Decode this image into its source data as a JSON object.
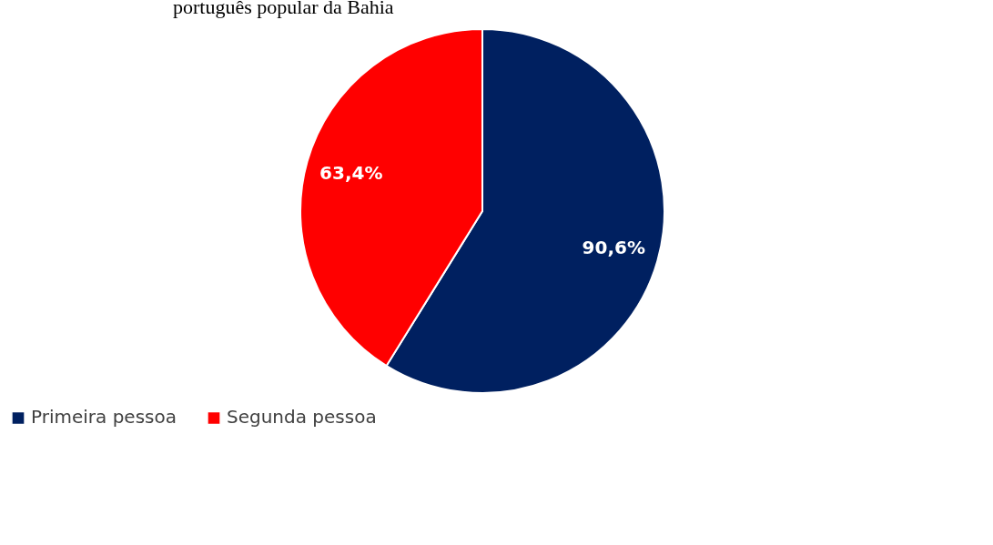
{
  "chart_data": {
    "type": "pie",
    "title": "português popular da Bahia",
    "categories": [
      "Primeira pessoa",
      "Segunda pessoa"
    ],
    "values": [
      90.6,
      63.4
    ],
    "value_labels": [
      "90,6%",
      "63,4%"
    ],
    "colors": [
      "#002060",
      "#ff0000"
    ],
    "legend": "bottom"
  }
}
